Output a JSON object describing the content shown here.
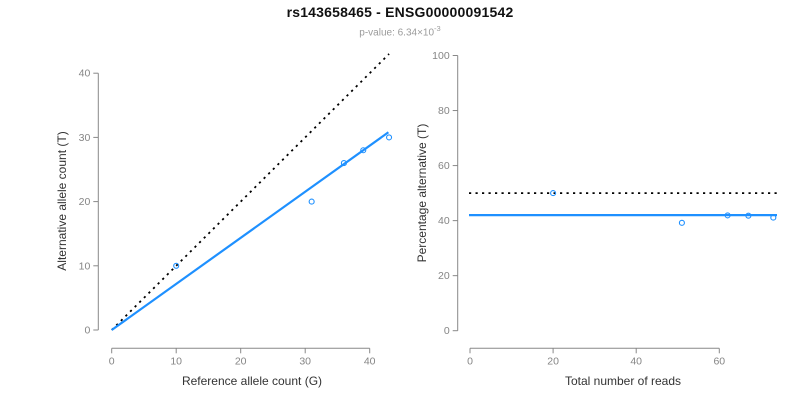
{
  "header": {
    "title": "rs143658465 - ENSG00000091542",
    "p_value_label": "p-value: 6.34×10",
    "p_value_exponent": "-3"
  },
  "colors": {
    "accent_blue": "#1E90FF",
    "identity_black": "#000000",
    "axis_gray": "#888888",
    "tick_label_gray": "#858585",
    "axis_label_dark": "#333333",
    "subtitle_gray": "#9b9b9b"
  },
  "chart_data": [
    {
      "type": "scatter",
      "panel": "allele-counts",
      "xlabel": "Reference allele count (G)",
      "ylabel": "Alternative allele count (T)",
      "xlim": [
        0,
        43.5
      ],
      "ylim": [
        0,
        43.5
      ],
      "xticks": [
        0,
        10,
        20,
        30,
        40
      ],
      "yticks": [
        0,
        10,
        20,
        30,
        40
      ],
      "grid": false,
      "legend": false,
      "points": [
        [
          10,
          10
        ],
        [
          31,
          20
        ],
        [
          36,
          26
        ],
        [
          39,
          28
        ],
        [
          43,
          30
        ]
      ],
      "lines": [
        {
          "name": "identity-line",
          "style": "dotted",
          "color": "#000000",
          "from": [
            0,
            0
          ],
          "to": [
            43,
            43
          ]
        },
        {
          "name": "fit-line",
          "style": "solid",
          "color": "#1E90FF",
          "from": [
            0,
            0
          ],
          "to": [
            42.9,
            30.8
          ]
        }
      ]
    },
    {
      "type": "scatter",
      "panel": "percentage-vs-reads",
      "xlabel": "Total number of reads",
      "ylabel": "Percentage alternative (T)",
      "xlim": [
        0,
        74
      ],
      "ylim": [
        0,
        100
      ],
      "xticks": [
        0,
        20,
        40,
        60
      ],
      "yticks": [
        0,
        20,
        40,
        60,
        80,
        100
      ],
      "grid": false,
      "legend": false,
      "points": [
        [
          20,
          50
        ],
        [
          51,
          39.2
        ],
        [
          62,
          41.9
        ],
        [
          67,
          41.8
        ],
        [
          73,
          41.1
        ]
      ],
      "lines": [
        {
          "name": "expected-percentage-line",
          "style": "dotted",
          "color": "#000000",
          "y": 50
        },
        {
          "name": "fitted-percentage-line",
          "style": "solid",
          "color": "#1E90FF",
          "y": 42
        }
      ]
    }
  ]
}
